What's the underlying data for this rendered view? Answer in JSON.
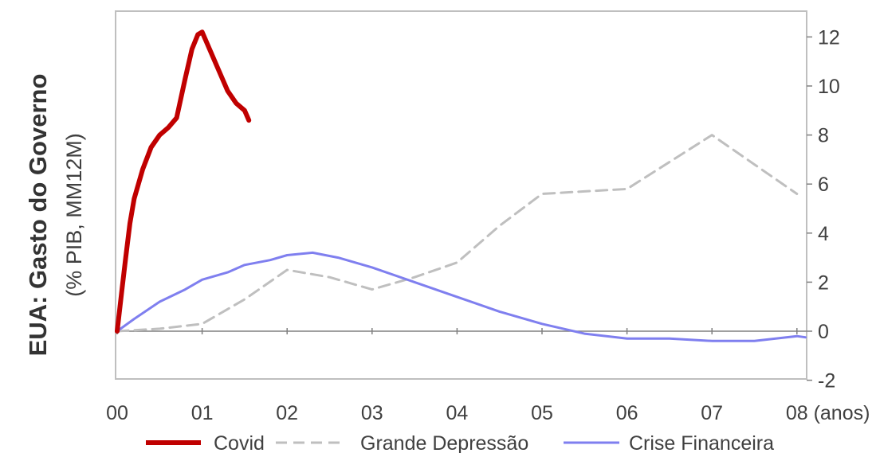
{
  "chart_data": {
    "type": "line",
    "title": "EUA: Gasto do Governo",
    "subtitle": "(% PIB, MM12M)",
    "x_unit_label": "(anos)",
    "x_ticks": [
      "00",
      "01",
      "02",
      "03",
      "04",
      "05",
      "06",
      "07",
      "08"
    ],
    "y_ticks": [
      "-2",
      "0",
      "2",
      "4",
      "6",
      "8",
      "10",
      "12"
    ],
    "xlim": [
      0,
      8.1
    ],
    "ylim": [
      -2,
      12.9
    ],
    "y_axis_position": "right",
    "grid": false,
    "legend_position": "bottom",
    "series": [
      {
        "name": "Covid",
        "color": "#c00000",
        "style": "solid",
        "points": [
          [
            0,
            0
          ],
          [
            0.05,
            1.5
          ],
          [
            0.1,
            3.0
          ],
          [
            0.15,
            4.4
          ],
          [
            0.2,
            5.4
          ],
          [
            0.3,
            6.6
          ],
          [
            0.4,
            7.5
          ],
          [
            0.5,
            8.0
          ],
          [
            0.6,
            8.3
          ],
          [
            0.7,
            8.7
          ],
          [
            0.8,
            10.3
          ],
          [
            0.88,
            11.5
          ],
          [
            0.95,
            12.1
          ],
          [
            1.0,
            12.2
          ],
          [
            1.1,
            11.4
          ],
          [
            1.2,
            10.6
          ],
          [
            1.3,
            9.8
          ],
          [
            1.4,
            9.3
          ],
          [
            1.5,
            9.0
          ],
          [
            1.55,
            8.6
          ]
        ]
      },
      {
        "name": "Grande Depressão",
        "color": "#bfbfbf",
        "style": "dashed",
        "points": [
          [
            0,
            0
          ],
          [
            0.5,
            0.1
          ],
          [
            1.0,
            0.3
          ],
          [
            1.5,
            1.3
          ],
          [
            2.0,
            2.5
          ],
          [
            2.5,
            2.2
          ],
          [
            3.0,
            1.7
          ],
          [
            3.5,
            2.2
          ],
          [
            4.0,
            2.8
          ],
          [
            4.5,
            4.3
          ],
          [
            5.0,
            5.6
          ],
          [
            5.5,
            5.7
          ],
          [
            6.0,
            5.8
          ],
          [
            6.5,
            6.9
          ],
          [
            7.0,
            8.0
          ],
          [
            7.5,
            6.8
          ],
          [
            8.0,
            5.6
          ]
        ]
      },
      {
        "name": "Crise Financeira",
        "color": "#7f7fef",
        "style": "solid",
        "points": [
          [
            0,
            0
          ],
          [
            0.2,
            0.5
          ],
          [
            0.5,
            1.2
          ],
          [
            0.8,
            1.7
          ],
          [
            1.0,
            2.1
          ],
          [
            1.3,
            2.4
          ],
          [
            1.5,
            2.7
          ],
          [
            1.8,
            2.9
          ],
          [
            2.0,
            3.1
          ],
          [
            2.3,
            3.2
          ],
          [
            2.6,
            3.0
          ],
          [
            3.0,
            2.6
          ],
          [
            3.5,
            2.0
          ],
          [
            4.0,
            1.4
          ],
          [
            4.5,
            0.8
          ],
          [
            5.0,
            0.3
          ],
          [
            5.5,
            -0.1
          ],
          [
            6.0,
            -0.3
          ],
          [
            6.5,
            -0.3
          ],
          [
            7.0,
            -0.4
          ],
          [
            7.5,
            -0.4
          ],
          [
            8.0,
            -0.2
          ],
          [
            8.1,
            -0.25
          ]
        ]
      }
    ]
  }
}
